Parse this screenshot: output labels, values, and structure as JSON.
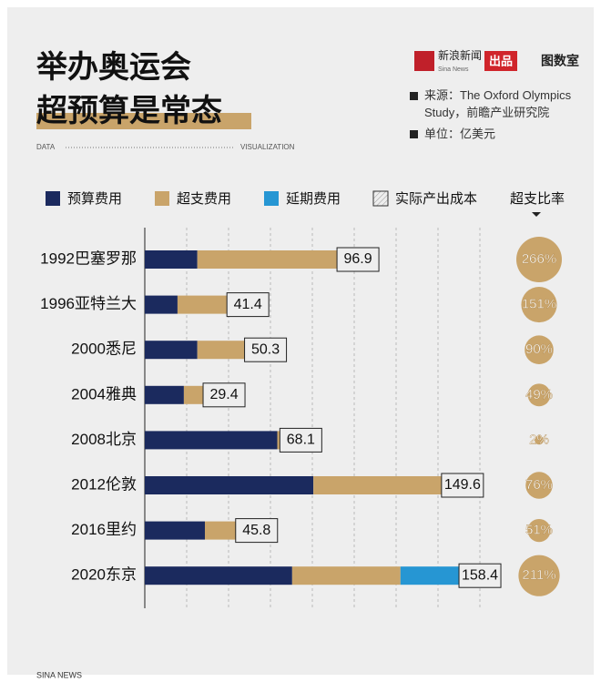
{
  "header": {
    "title_lines": [
      "举办奥运会",
      "超预算是常态"
    ],
    "data_word": "DATA",
    "vis_word": "VISUALIZATION",
    "brand": "新浪新闻",
    "brand_en": "Sina News",
    "brand_tag": "出品",
    "studio": "图数室",
    "source": "来源：The Oxford Olympics Study，前瞻产业研究院",
    "unit": "单位：亿美元"
  },
  "chart_data": {
    "type": "stacked_bar_h",
    "categories": [
      "1992巴塞罗那",
      "1996亚特兰大",
      "2000悉尼",
      "2004雅典",
      "2008北京",
      "2012伦敦",
      "2016里约",
      "2020东京"
    ],
    "series": [
      {
        "name": "预算费用",
        "color": "#1b2a5e",
        "values": [
          26.5,
          16.5,
          26.5,
          19.7,
          66.8,
          85.0,
          30.3,
          74.3
        ]
      },
      {
        "name": "超支费用",
        "color": "#c9a46a",
        "values": [
          70.4,
          24.9,
          23.8,
          9.7,
          1.3,
          64.6,
          15.5,
          54.6
        ]
      },
      {
        "name": "延期费用",
        "color": "#2696d3",
        "values": [
          0,
          0,
          0,
          0,
          0,
          0,
          0,
          29.5
        ]
      }
    ],
    "total_label": "实际产出成本",
    "totals": [
      96.9,
      41.4,
      50.3,
      29.4,
      68.1,
      149.6,
      45.8,
      158.4
    ],
    "xlim": [
      0,
      230
    ],
    "ratio_title": "超支比率",
    "ratios": [
      266,
      151,
      90,
      49,
      2,
      76,
      51,
      211
    ],
    "ratio_labels": [
      "266%",
      "151%",
      "90%",
      "49%",
      "2%",
      "76%",
      "51%",
      "211%"
    ],
    "ratio_color": "#c9a46a"
  },
  "footer": "SINA NEWS"
}
